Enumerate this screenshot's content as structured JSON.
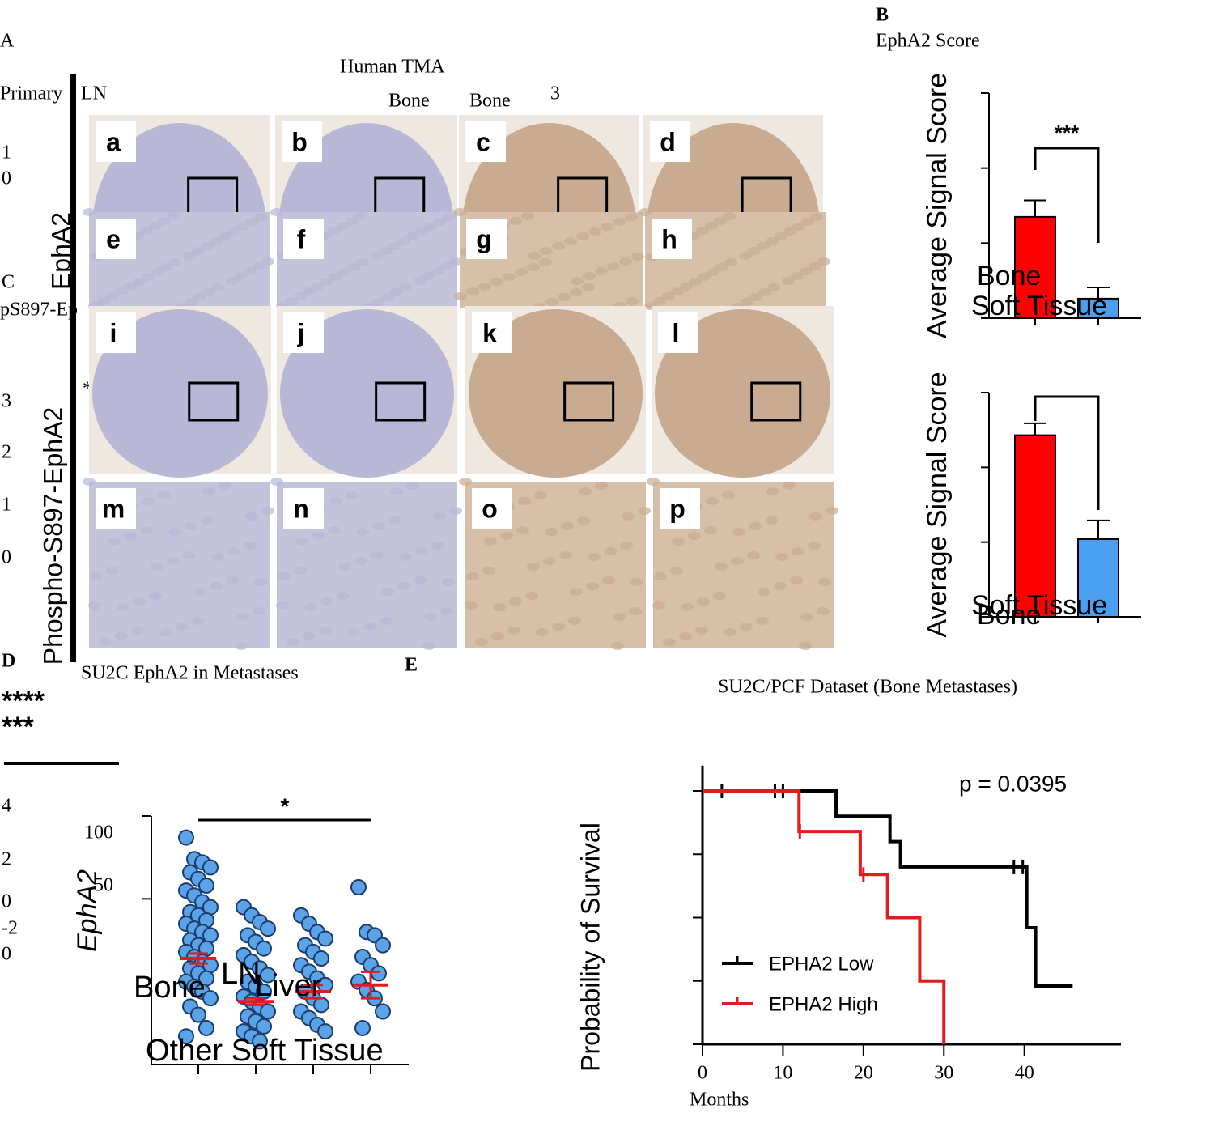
{
  "panel_a": {
    "label": "A",
    "title": "Human TMA",
    "column_labels": [
      "Primary",
      "LN",
      "Bone",
      "Bone",
      "3"
    ],
    "row_labels": [
      "EphA2",
      "Phospho-S897-EphA2"
    ],
    "tiles": [
      "a",
      "b",
      "c",
      "d",
      "e",
      "f",
      "g",
      "h",
      "i",
      "j",
      "k",
      "l",
      "m",
      "n",
      "o",
      "p"
    ],
    "stray_text": [
      "1",
      "0",
      "*"
    ]
  },
  "panel_c": {
    "label": "C",
    "text": "pS897-Ep",
    "stray_text": [
      "3",
      "2",
      "1",
      "0"
    ]
  },
  "panel_b": {
    "label": "B",
    "title": "EphA2 Score",
    "charts": [
      {
        "type": "bar",
        "y_label": "Average Signal Score",
        "categories": [
          "Bone",
          "Soft Tissue"
        ],
        "values": [
          1.35,
          0.26
        ],
        "errors": [
          0.22,
          0.15
        ],
        "colors": [
          "#ff0000",
          "#4a9ff0"
        ],
        "ylim": [
          0,
          3
        ],
        "yticks": [
          0,
          1,
          2,
          3
        ],
        "significance": "***"
      },
      {
        "type": "bar",
        "y_label": "Average Signal Score",
        "categories": [
          "Bone",
          "Soft Tissue"
        ],
        "values": [
          2.43,
          1.04
        ],
        "errors": [
          0.16,
          0.25
        ],
        "colors": [
          "#ff0000",
          "#4a9ff0"
        ],
        "ylim": [
          0,
          3
        ],
        "yticks": [
          0,
          1,
          2,
          3
        ]
      }
    ]
  },
  "panel_d": {
    "label": "D",
    "title": "SU2C EphA2 in Metastases",
    "stray_text": [
      "****",
      "***",
      "4",
      "2",
      "0",
      "-2",
      "0"
    ],
    "chart": {
      "type": "scatter",
      "y_label": "EphA2",
      "categories": [
        "Bone",
        "LN",
        "Liver",
        "Other Soft Tissue"
      ],
      "groups": [
        [
          87,
          74,
          72,
          69,
          66,
          62,
          58,
          55,
          52,
          48,
          45,
          42,
          40,
          37,
          35,
          32,
          30,
          28,
          25,
          22,
          20,
          18,
          15,
          12,
          10,
          8,
          5,
          2,
          0,
          -3,
          -6,
          -10,
          -15,
          -20,
          -28,
          -33
        ],
        [
          45,
          40,
          36,
          32,
          28,
          24,
          20,
          16,
          12,
          8,
          4,
          0,
          -3,
          -6,
          -9,
          -12,
          -15,
          -18,
          -21,
          -24,
          -27,
          -30,
          -33,
          -36
        ],
        [
          40,
          35,
          30,
          26,
          22,
          18,
          14,
          10,
          6,
          2,
          -2,
          -6,
          -10,
          -14,
          -18,
          -22,
          -26,
          -30
        ],
        [
          57,
          30,
          28,
          22,
          15,
          10,
          5,
          0,
          -5,
          -10,
          -18,
          -28
        ]
      ],
      "means": [
        14,
        -12,
        -6,
        -2
      ],
      "errors": [
        3,
        2,
        4,
        8
      ],
      "ylim": [
        -50,
        100
      ],
      "yticks": [
        50,
        100
      ],
      "significance": "*"
    }
  },
  "panel_e": {
    "label": "E",
    "title": "SU2C/PCF Dataset (Bone Metastases)",
    "chart": {
      "type": "line",
      "y_label": "Probability of Survival",
      "x_label": "Months",
      "annotation": "p = 0.0395",
      "xlim": [
        0,
        52
      ],
      "xticks": [
        0,
        10,
        20,
        30,
        40
      ],
      "ylim": [
        0,
        1.1
      ],
      "yticks": [
        0,
        0.25,
        0.5,
        0.75,
        1
      ],
      "series": [
        {
          "name": "EPHA2 Low",
          "color": "#000000",
          "x": [
            0,
            16.6,
            23.3,
            24.6,
            40.3,
            41.4,
            46
          ],
          "values": [
            1,
            0.9,
            0.8,
            0.7,
            0.46,
            0.23,
            0.23
          ],
          "censored_x": [
            2.4,
            9,
            10,
            38.7,
            39.8
          ]
        },
        {
          "name": "EPHA2 High",
          "color": "#e41a1c",
          "x": [
            0,
            12,
            19.6,
            23,
            27,
            30
          ],
          "values": [
            1,
            0.84,
            0.67,
            0.5,
            0.25,
            0
          ],
          "censored_x": [
            12.1,
            20
          ]
        }
      ]
    }
  }
}
